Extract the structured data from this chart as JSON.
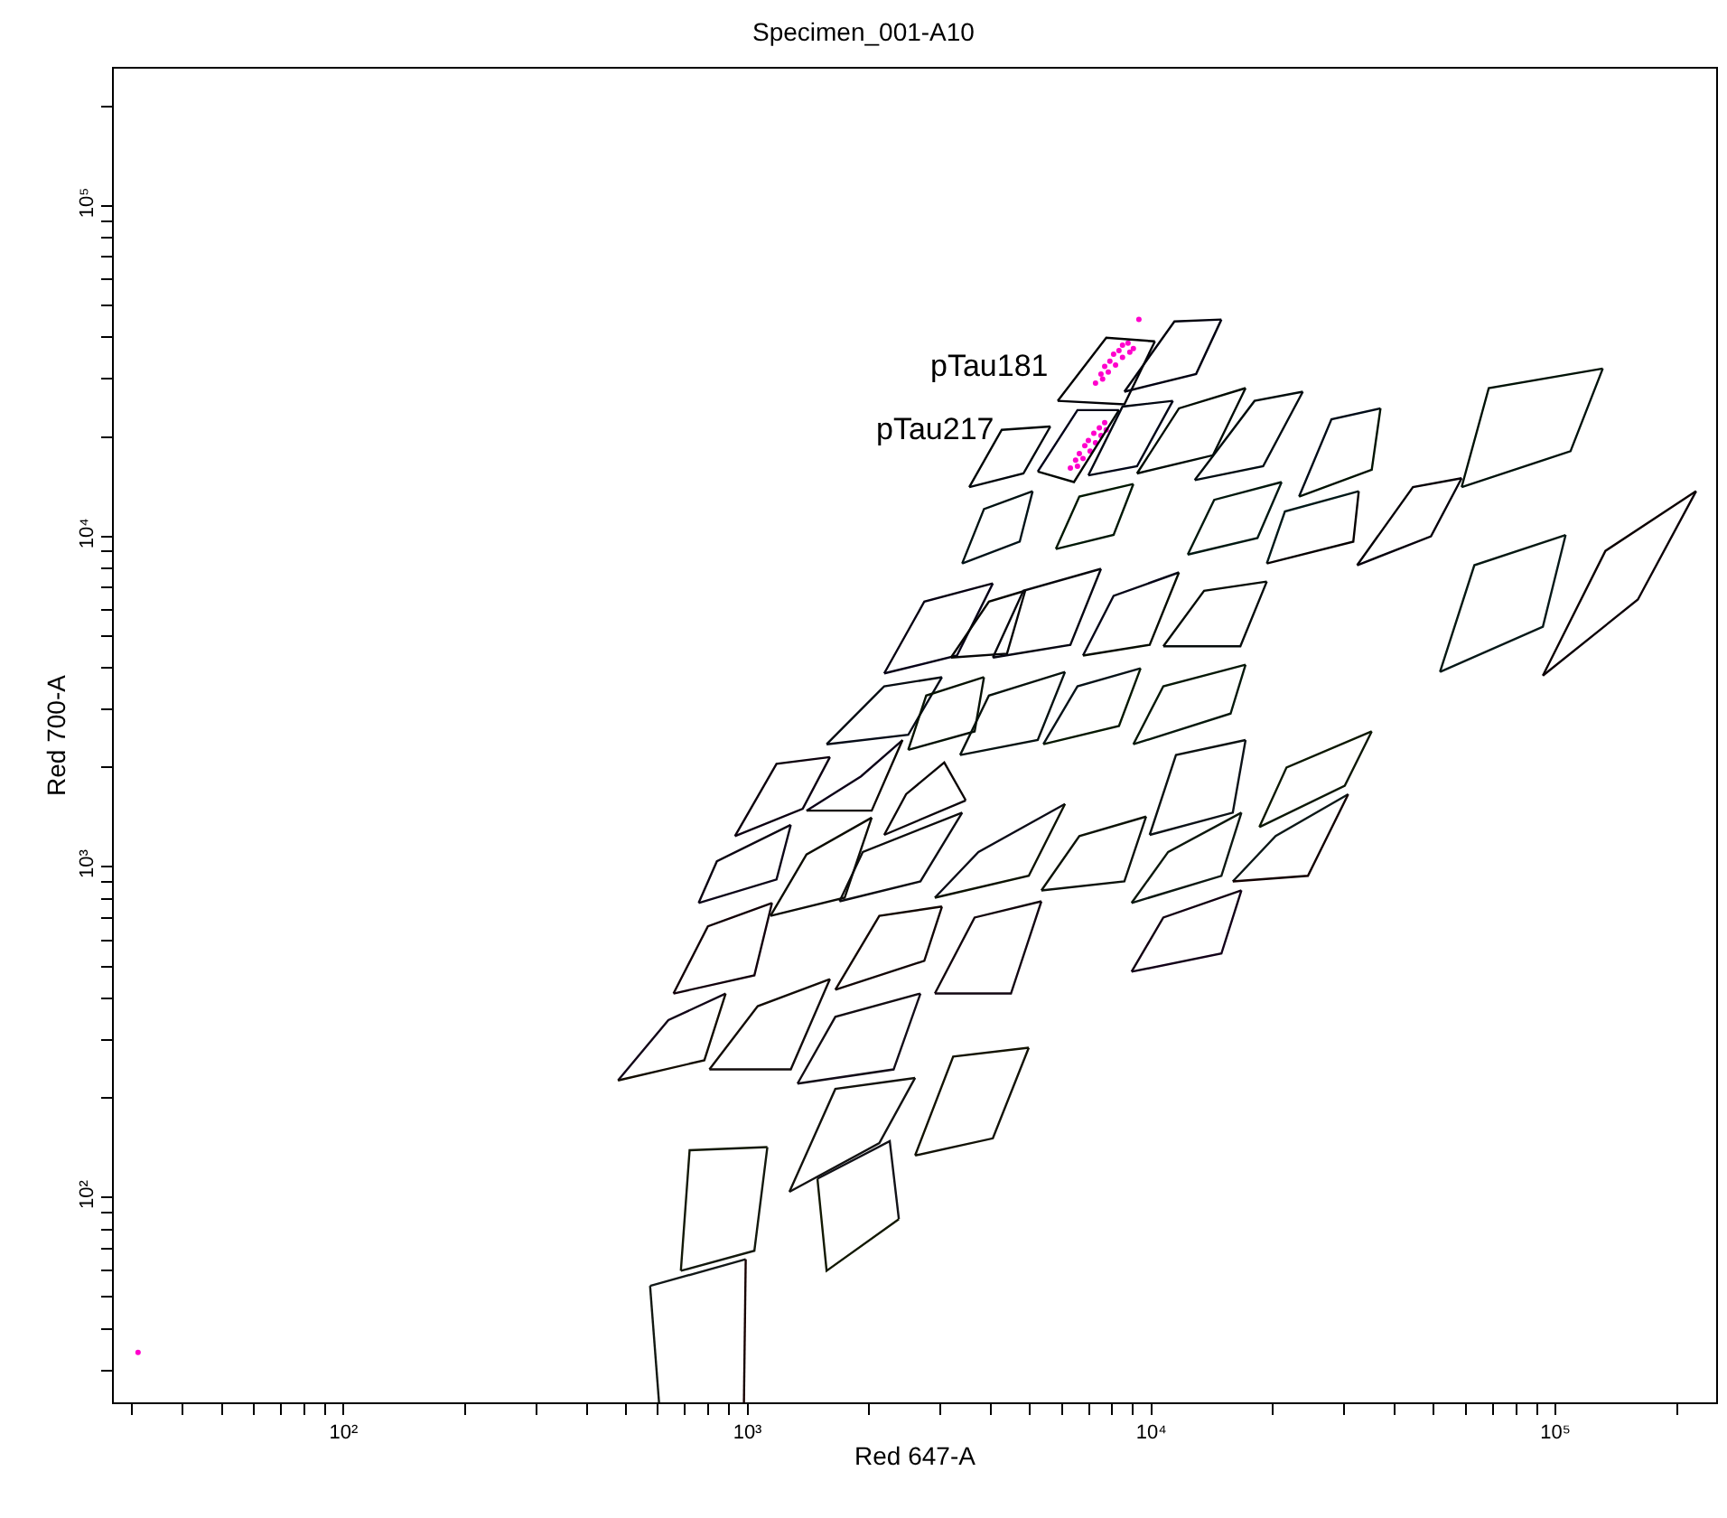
{
  "chart_data": {
    "type": "line",
    "title": "Specimen_001-A10",
    "xlabel": "Red 647-A",
    "ylabel": "Red 700-A",
    "log": "xy",
    "xlim": [
      27,
      250000
    ],
    "ylim": [
      24,
      260000
    ],
    "xticks": [
      {
        "value": 30,
        "label": null
      },
      {
        "value": 40,
        "label": null
      },
      {
        "value": 50,
        "label": null
      },
      {
        "value": 60,
        "label": null
      },
      {
        "value": 70,
        "label": null
      },
      {
        "value": 80,
        "label": null
      },
      {
        "value": 90,
        "label": null
      },
      {
        "value": 100,
        "label": "10²"
      },
      {
        "value": 200,
        "label": null
      },
      {
        "value": 300,
        "label": null
      },
      {
        "value": 400,
        "label": null
      },
      {
        "value": 500,
        "label": null
      },
      {
        "value": 600,
        "label": null
      },
      {
        "value": 700,
        "label": null
      },
      {
        "value": 800,
        "label": null
      },
      {
        "value": 900,
        "label": null
      },
      {
        "value": 1000,
        "label": "10³"
      },
      {
        "value": 2000,
        "label": null
      },
      {
        "value": 3000,
        "label": null
      },
      {
        "value": 4000,
        "label": null
      },
      {
        "value": 5000,
        "label": null
      },
      {
        "value": 6000,
        "label": null
      },
      {
        "value": 7000,
        "label": null
      },
      {
        "value": 8000,
        "label": null
      },
      {
        "value": 9000,
        "label": null
      },
      {
        "value": 10000,
        "label": "10⁴"
      },
      {
        "value": 20000,
        "label": null
      },
      {
        "value": 30000,
        "label": null
      },
      {
        "value": 40000,
        "label": null
      },
      {
        "value": 50000,
        "label": null
      },
      {
        "value": 60000,
        "label": null
      },
      {
        "value": 70000,
        "label": null
      },
      {
        "value": 80000,
        "label": null
      },
      {
        "value": 90000,
        "label": null
      },
      {
        "value": 100000,
        "label": "10⁵"
      },
      {
        "value": 200000,
        "label": null
      }
    ],
    "yticks": [
      {
        "value": 30,
        "label": null
      },
      {
        "value": 40,
        "label": null
      },
      {
        "value": 50,
        "label": null
      },
      {
        "value": 60,
        "label": null
      },
      {
        "value": 70,
        "label": null
      },
      {
        "value": 80,
        "label": null
      },
      {
        "value": 90,
        "label": null
      },
      {
        "value": 100,
        "label": "10²"
      },
      {
        "value": 200,
        "label": null
      },
      {
        "value": 300,
        "label": null
      },
      {
        "value": 400,
        "label": null
      },
      {
        "value": 500,
        "label": null
      },
      {
        "value": 600,
        "label": null
      },
      {
        "value": 700,
        "label": null
      },
      {
        "value": 800,
        "label": null
      },
      {
        "value": 900,
        "label": null
      },
      {
        "value": 1000,
        "label": "10³"
      },
      {
        "value": 2000,
        "label": null
      },
      {
        "value": 3000,
        "label": null
      },
      {
        "value": 4000,
        "label": null
      },
      {
        "value": 5000,
        "label": null
      },
      {
        "value": 6000,
        "label": null
      },
      {
        "value": 7000,
        "label": null
      },
      {
        "value": 8000,
        "label": null
      },
      {
        "value": 9000,
        "label": null
      },
      {
        "value": 10000,
        "label": "10⁴"
      },
      {
        "value": 20000,
        "label": null
      },
      {
        "value": 30000,
        "label": null
      },
      {
        "value": 40000,
        "label": null
      },
      {
        "value": 50000,
        "label": null
      },
      {
        "value": 60000,
        "label": null
      },
      {
        "value": 70000,
        "label": null
      },
      {
        "value": 80000,
        "label": null
      },
      {
        "value": 90000,
        "label": null
      },
      {
        "value": 100000,
        "label": "10⁵"
      },
      {
        "value": 200000,
        "label": null
      }
    ],
    "annotations": [
      {
        "text": "pTau181",
        "x": 5860,
        "y": 25700
      },
      {
        "text": "pTau217",
        "x": 4260,
        "y": 21000
      }
    ],
    "series": [
      {
        "type": "scatter",
        "marker": "circle",
        "color": "#ff00cc",
        "x": [
          7270,
          7500,
          7660,
          7890,
          8060,
          8310,
          8480,
          8750,
          7820,
          8150,
          8480,
          8840,
          7570,
          9020,
          6300,
          6490,
          6630,
          6840,
          6980,
          7200,
          7430,
          7660,
          6770,
          7050,
          7270,
          7500,
          6560,
          7730,
          9310,
          31
        ],
        "values": [
          29100,
          31000,
          32700,
          33900,
          35600,
          36500,
          37900,
          38400,
          31400,
          33000,
          34800,
          36100,
          29900,
          37000,
          16100,
          17000,
          17800,
          18800,
          19500,
          20500,
          21300,
          22100,
          17200,
          18100,
          19200,
          20200,
          16300,
          21000,
          45300,
          34
        ]
      },
      {
        "color": "#000000",
        "x": [
          5860,
          7730,
          10200
        ],
        "values": [
          25700,
          39900,
          38900
        ]
      },
      {
        "color": "#000006",
        "x": [
          5860,
          8570,
          10200
        ],
        "values": [
          25700,
          25100,
          38900
        ]
      },
      {
        "color": "#00000c",
        "x": [
          8570,
          11400,
          14900
        ],
        "values": [
          27400,
          44700,
          45300
        ]
      },
      {
        "color": "#000012",
        "x": [
          8570,
          12900,
          14900
        ],
        "values": [
          27400,
          31000,
          45300
        ]
      },
      {
        "color": "#000018",
        "x": [
          5230,
          6560,
          8310
        ],
        "values": [
          15700,
          24100,
          24100
        ]
      },
      {
        "color": "#000600",
        "x": [
          5230,
          6430,
          8310
        ],
        "values": [
          15700,
          14600,
          24100
        ]
      },
      {
        "color": "#000606",
        "x": [
          3540,
          4260,
          5620
        ],
        "values": [
          14100,
          21000,
          21500
        ]
      },
      {
        "color": "#00060c",
        "x": [
          3540,
          4820,
          5620
        ],
        "values": [
          14100,
          15500,
          21500
        ]
      },
      {
        "color": "#000612",
        "x": [
          6980,
          8480,
          11300
        ],
        "values": [
          15300,
          24700,
          25700
        ]
      },
      {
        "color": "#000618",
        "x": [
          6980,
          9210,
          11300
        ],
        "values": [
          15300,
          16300,
          25700
        ]
      },
      {
        "color": "#000c00",
        "x": [
          9210,
          11700,
          17100
        ],
        "values": [
          15500,
          24400,
          28100
        ]
      },
      {
        "color": "#000c06",
        "x": [
          9210,
          14200,
          17100
        ],
        "values": [
          15500,
          17600,
          28100
        ]
      },
      {
        "color": "#000c0c",
        "x": [
          12800,
          18000,
          23700
        ],
        "values": [
          14800,
          25700,
          27400
        ]
      },
      {
        "color": "#000c12",
        "x": [
          12800,
          18900,
          23700
        ],
        "values": [
          14800,
          16300,
          27400
        ]
      },
      {
        "color": "#000c18",
        "x": [
          23200,
          27900,
          36900
        ],
        "values": [
          13200,
          22600,
          24400
        ]
      },
      {
        "color": "#001200",
        "x": [
          23200,
          35100,
          36900
        ],
        "values": [
          13200,
          15900,
          24400
        ]
      },
      {
        "color": "#001206",
        "x": [
          58600,
          68400,
          131000
        ],
        "values": [
          14100,
          28100,
          32200
        ]
      },
      {
        "color": "#00120c",
        "x": [
          58600,
          109000,
          131000
        ],
        "values": [
          14100,
          18100,
          32200
        ]
      },
      {
        "color": "#001212",
        "x": [
          3400,
          3850,
          5080
        ],
        "values": [
          8280,
          12100,
          13700
        ]
      },
      {
        "color": "#001218",
        "x": [
          3400,
          4720,
          5080
        ],
        "values": [
          8280,
          9640,
          13700
        ]
      },
      {
        "color": "#001800",
        "x": [
          5800,
          6630,
          9020
        ],
        "values": [
          9160,
          13200,
          14400
        ]
      },
      {
        "color": "#001806",
        "x": [
          5800,
          8060,
          9020
        ],
        "values": [
          9160,
          10100,
          14400
        ]
      },
      {
        "color": "#00180c",
        "x": [
          12300,
          14300,
          21000
        ],
        "values": [
          8810,
          12900,
          14600
        ]
      },
      {
        "color": "#001812",
        "x": [
          12300,
          18300,
          21000
        ],
        "values": [
          8810,
          9890,
          14600
        ]
      },
      {
        "color": "#001818",
        "x": [
          19300,
          21400,
          32600
        ],
        "values": [
          8280,
          11900,
          13700
        ]
      },
      {
        "color": "#060000",
        "x": [
          19300,
          31600,
          32600
        ],
        "values": [
          8280,
          9640,
          13700
        ]
      },
      {
        "color": "#060006",
        "x": [
          32300,
          44400,
          58600
        ],
        "values": [
          8180,
          14100,
          15000
        ]
      },
      {
        "color": "#06000c",
        "x": [
          32300,
          49200,
          58600
        ],
        "values": [
          8180,
          10000,
          15000
        ]
      },
      {
        "color": "#060012",
        "x": [
          2180,
          2740,
          4050
        ],
        "values": [
          3850,
          6350,
          7210
        ]
      },
      {
        "color": "#060018",
        "x": [
          2180,
          3300,
          4050
        ],
        "values": [
          3850,
          4360,
          7210
        ]
      },
      {
        "color": "#060600",
        "x": [
          3190,
          3960,
          4870
        ],
        "values": [
          4300,
          6350,
          6850
        ]
      },
      {
        "color": "#060606",
        "x": [
          3190,
          4390,
          4870
        ],
        "values": [
          4300,
          4420,
          6850
        ]
      },
      {
        "color": "#06060c",
        "x": [
          4050,
          4820,
          7500
        ],
        "values": [
          4300,
          6850,
          7980
        ]
      },
      {
        "color": "#060612",
        "x": [
          4050,
          6300,
          7500
        ],
        "values": [
          4300,
          4700,
          7980
        ]
      },
      {
        "color": "#060618",
        "x": [
          6770,
          8060,
          11700
        ],
        "values": [
          4360,
          6610,
          7780
        ]
      },
      {
        "color": "#060c00",
        "x": [
          6770,
          9900,
          11700
        ],
        "values": [
          4360,
          4700,
          7780
        ]
      },
      {
        "color": "#060c06",
        "x": [
          10700,
          13500,
          19300
        ],
        "values": [
          4650,
          6850,
          7300
        ]
      },
      {
        "color": "#060c0c",
        "x": [
          10700,
          16600,
          19300
        ],
        "values": [
          4650,
          4650,
          7300
        ]
      },
      {
        "color": "#060c12",
        "x": [
          1570,
          2180,
          3030
        ],
        "values": [
          2350,
          3520,
          3750
        ]
      },
      {
        "color": "#060c18",
        "x": [
          1570,
          2500,
          3030
        ],
        "values": [
          2350,
          2510,
          3750
        ]
      },
      {
        "color": "#061200",
        "x": [
          2500,
          2770,
          3850
        ],
        "values": [
          2260,
          3300,
          3750
        ]
      },
      {
        "color": "#061206",
        "x": [
          2500,
          3650,
          3850
        ],
        "values": [
          2260,
          2570,
          3750
        ]
      },
      {
        "color": "#06120c",
        "x": [
          3360,
          3960,
          6110
        ],
        "values": [
          2180,
          3300,
          3890
        ]
      },
      {
        "color": "#061212",
        "x": [
          3360,
          5230,
          6110
        ],
        "values": [
          2180,
          2420,
          3890
        ]
      },
      {
        "color": "#061218",
        "x": [
          5400,
          6560,
          9400
        ],
        "values": [
          2350,
          3520,
          3990
        ]
      },
      {
        "color": "#061800",
        "x": [
          5400,
          8310,
          9400
        ],
        "values": [
          2350,
          2670,
          3990
        ]
      },
      {
        "color": "#061806",
        "x": [
          9020,
          10700,
          17100
        ],
        "values": [
          2350,
          3520,
          4090
        ]
      },
      {
        "color": "#06180c",
        "x": [
          9020,
          15700,
          17100
        ],
        "values": [
          2350,
          2910,
          4090
        ]
      },
      {
        "color": "#061812",
        "x": [
          51800,
          63000,
          106000
        ],
        "values": [
          3890,
          8180,
          10100
        ]
      },
      {
        "color": "#061818",
        "x": [
          51800,
          93100,
          106000
        ],
        "values": [
          3890,
          5330,
          10100
        ]
      },
      {
        "color": "#0c0000",
        "x": [
          93100,
          133000,
          223000
        ],
        "values": [
          3790,
          9040,
          13700
        ]
      },
      {
        "color": "#0c0006",
        "x": [
          93100,
          160000,
          223000
        ],
        "values": [
          3790,
          6440,
          13700
        ]
      },
      {
        "color": "#0c000c",
        "x": [
          931,
          1180,
          1600
        ],
        "values": [
          1240,
          2050,
          2150
        ]
      },
      {
        "color": "#0c0012",
        "x": [
          931,
          1370,
          1600
        ],
        "values": [
          1240,
          1500,
          2150
        ]
      },
      {
        "color": "#0c0018",
        "x": [
          1400,
          1910,
          2420
        ],
        "values": [
          1480,
          1880,
          2420
        ]
      },
      {
        "color": "#0c0600",
        "x": [
          1400,
          2030,
          2420
        ],
        "values": [
          1480,
          1480,
          2420
        ]
      },
      {
        "color": "#0c0606",
        "x": [
          2180,
          2470,
          3070,
          3470
        ],
        "values": [
          1250,
          1660,
          2070,
          1590
        ]
      },
      {
        "color": "#0c060c",
        "x": [
          2180,
          3470
        ],
        "values": [
          1250,
          1590
        ]
      },
      {
        "color": "#0c0612",
        "x": [
          757,
          840,
          1280
        ],
        "values": [
          778,
          1040,
          1340
        ]
      },
      {
        "color": "#0c0618",
        "x": [
          757,
          1180,
          1280
        ],
        "values": [
          778,
          916,
          1340
        ]
      },
      {
        "color": "#0c0c00",
        "x": [
          1140,
          1400,
          2030
        ],
        "values": [
          711,
          1090,
          1410
        ]
      },
      {
        "color": "#0c0c06",
        "x": [
          1140,
          1740,
          2030
        ],
        "values": [
          711,
          807,
          1410
        ]
      },
      {
        "color": "#0c0c0c",
        "x": [
          1690,
          1930,
          3400
        ],
        "values": [
          787,
          1110,
          1460
        ]
      },
      {
        "color": "#0c0c12",
        "x": [
          1690,
          2680,
          3400
        ],
        "values": [
          787,
          904,
          1460
        ]
      },
      {
        "color": "#0c0c18",
        "x": [
          2910,
          3730,
          6110
        ],
        "values": [
          807,
          1110,
          1550
        ]
      },
      {
        "color": "#0c1200",
        "x": [
          2910,
          4970,
          6110
        ],
        "values": [
          807,
          940,
          1550
        ]
      },
      {
        "color": "#0c1206",
        "x": [
          5340,
          6630,
          9700
        ],
        "values": [
          849,
          1240,
          1420
        ]
      },
      {
        "color": "#0c120c",
        "x": [
          5340,
          8570,
          9700
        ],
        "values": [
          849,
          904,
          1420
        ]
      },
      {
        "color": "#0c1212",
        "x": [
          9900,
          11500,
          17100
        ],
        "values": [
          1250,
          2180,
          2420
        ]
      },
      {
        "color": "#0c1218",
        "x": [
          9900,
          15900,
          17100
        ],
        "values": [
          1250,
          1460,
          2420
        ]
      },
      {
        "color": "#0c1800",
        "x": [
          18500,
          21600,
          35100
        ],
        "values": [
          1320,
          2000,
          2570
        ]
      },
      {
        "color": "#0c1806",
        "x": [
          18500,
          30100,
          35100
        ],
        "values": [
          1320,
          1760,
          2570
        ]
      },
      {
        "color": "#0c180c",
        "x": [
          8930,
          11000,
          16700
        ],
        "values": [
          778,
          1110,
          1460
        ]
      },
      {
        "color": "#0c1812",
        "x": [
          8930,
          14900,
          16700
        ],
        "values": [
          778,
          940,
          1460
        ]
      },
      {
        "color": "#0c1818",
        "x": [
          15900,
          20300,
          30700
        ],
        "values": [
          904,
          1240,
          1660
        ]
      },
      {
        "color": "#120000",
        "x": [
          15900,
          24400,
          30700
        ],
        "values": [
          904,
          940,
          1660
        ]
      },
      {
        "color": "#120006",
        "x": [
          656,
          798,
          1150
        ],
        "values": [
          414,
          661,
          778
        ]
      },
      {
        "color": "#12000c",
        "x": [
          656,
          1040,
          1150
        ],
        "values": [
          414,
          470,
          778
        ]
      },
      {
        "color": "#120012",
        "x": [
          8930,
          10700,
          16700
        ],
        "values": [
          482,
          703,
          849
        ]
      },
      {
        "color": "#120018",
        "x": [
          8930,
          14900,
          16700
        ],
        "values": [
          482,
          547,
          849
        ]
      },
      {
        "color": "#120600",
        "x": [
          1650,
          2120,
          3030
        ],
        "values": [
          425,
          711,
          759
        ]
      },
      {
        "color": "#120606",
        "x": [
          1650,
          2740,
          3030
        ],
        "values": [
          425,
          520,
          759
        ]
      },
      {
        "color": "#12060c",
        "x": [
          2910,
          3650,
          5340
        ],
        "values": [
          414,
          703,
          787
        ]
      },
      {
        "color": "#120612",
        "x": [
          2910,
          4490,
          5340
        ],
        "values": [
          414,
          414,
          787
        ]
      },
      {
        "color": "#120618",
        "x": [
          478,
          637,
          883
        ],
        "values": [
          226,
          344,
          414
        ]
      },
      {
        "color": "#120c00",
        "x": [
          478,
          782,
          883
        ],
        "values": [
          226,
          260,
          414
        ]
      },
      {
        "color": "#120c06",
        "x": [
          805,
          1060,
          1600
        ],
        "values": [
          244,
          379,
          458
        ]
      },
      {
        "color": "#120c0c",
        "x": [
          805,
          1280,
          1600
        ],
        "values": [
          244,
          244,
          458
        ]
      },
      {
        "color": "#120c12",
        "x": [
          1330,
          1650,
          2680
        ],
        "values": [
          221,
          352,
          414
        ]
      },
      {
        "color": "#120c18",
        "x": [
          1330,
          2300,
          2680
        ],
        "values": [
          221,
          244,
          414
        ]
      },
      {
        "color": "#121200",
        "x": [
          2600,
          3230,
          4970
        ],
        "values": [
          134,
          267,
          284
        ]
      },
      {
        "color": "#121206",
        "x": [
          2600,
          4050,
          4970
        ],
        "values": [
          134,
          151,
          284
        ]
      },
      {
        "color": "#12120c",
        "x": [
          1270,
          1650,
          2600
        ],
        "values": [
          104,
          213,
          230
        ]
      },
      {
        "color": "#121212",
        "x": [
          1270,
          2120,
          2600
        ],
        "values": [
          104,
          146,
          230
        ]
      },
      {
        "color": "#121218",
        "x": [
          1490,
          2250,
          2370
        ],
        "values": [
          114,
          148,
          86
        ]
      },
      {
        "color": "#121800",
        "x": [
          1490,
          1570,
          2370
        ],
        "values": [
          114,
          60,
          86
        ]
      },
      {
        "color": "#121806",
        "x": [
          684,
          719,
          1120
        ],
        "values": [
          60,
          139,
          142
        ]
      },
      {
        "color": "#12180c",
        "x": [
          684,
          1040,
          1120
        ],
        "values": [
          60,
          69,
          142
        ]
      },
      {
        "color": "#121812",
        "x": [
          574,
          604
        ],
        "values": [
          54,
          24
        ]
      },
      {
        "color": "#121818",
        "x": [
          574,
          990
        ],
        "values": [
          54,
          65
        ]
      },
      {
        "color": "#180000",
        "x": [
          980,
          990
        ],
        "values": [
          24,
          65
        ]
      }
    ]
  }
}
